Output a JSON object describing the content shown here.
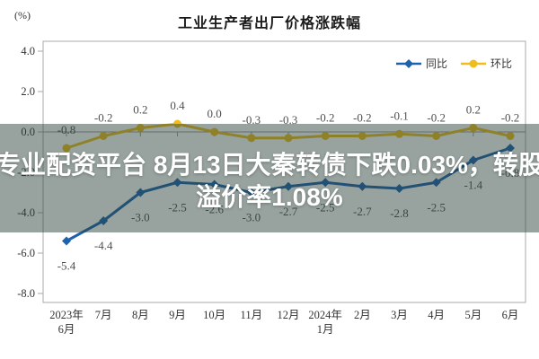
{
  "banner": {
    "line1": "专业配资平台 8月13日大秦转债下跌0.03%，转股",
    "line2": "溢价率1.08%",
    "text_color": "#ffffff",
    "overlay_color": "rgba(40,62,55,0.48)"
  },
  "chart_data": {
    "type": "line",
    "title": "工业生产者出厂价格涨跌幅",
    "unit_label": "(%)",
    "categories": [
      "2023年\n6月",
      "7月",
      "8月",
      "9月",
      "10月",
      "11月",
      "12月",
      "2024年\n1月",
      "2月",
      "3月",
      "4月",
      "5月",
      "6月"
    ],
    "series": [
      {
        "name": "同比",
        "marker": "diamond",
        "color": "#1e62ae",
        "label_side": "below",
        "values": [
          -5.4,
          -4.4,
          -3.0,
          -2.5,
          -2.6,
          -3.0,
          -2.7,
          -2.5,
          -2.7,
          -2.8,
          -2.5,
          -1.4,
          -0.8
        ]
      },
      {
        "name": "环比",
        "marker": "circle",
        "color": "#edbe1c",
        "label_side": "above",
        "values": [
          -0.8,
          -0.2,
          0.2,
          0.4,
          0.0,
          -0.3,
          -0.3,
          -0.2,
          -0.2,
          -0.1,
          -0.2,
          0.2,
          -0.2
        ]
      }
    ],
    "y_ticks": [
      4.0,
      2.0,
      0.0,
      -2.0,
      -4.0,
      -6.0,
      -8.0
    ],
    "ylim": [
      -8.0,
      4.0
    ],
    "legend_position": "top-right",
    "grid": false,
    "axis_color": "#aaaaaa",
    "zero_line_color": "#999999",
    "label_color": "#4f4f4f",
    "tick_label_color": "#333333"
  }
}
